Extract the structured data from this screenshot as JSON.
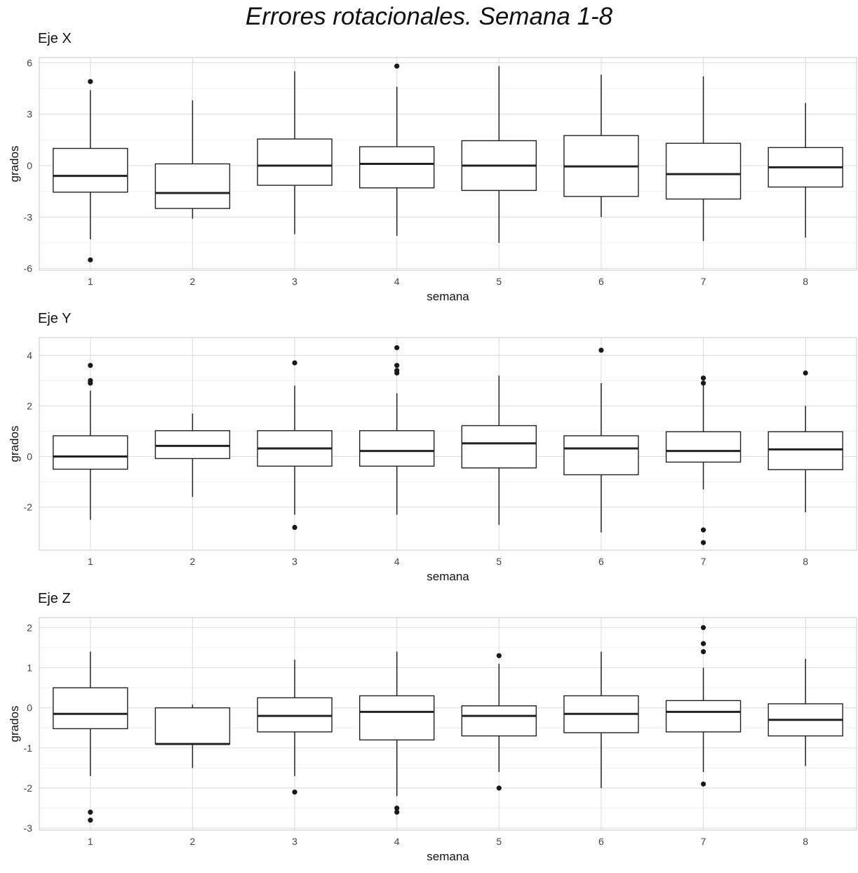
{
  "title": "Errores rotacionales. Semana 1-8",
  "chart_data": [
    {
      "type": "boxplot",
      "title": "Eje X",
      "xlabel": "semana",
      "ylabel": "grados",
      "categories": [
        "1",
        "2",
        "3",
        "4",
        "5",
        "6",
        "7",
        "8"
      ],
      "ylim": [
        -6.1,
        6.3
      ],
      "yticks": [
        -6,
        -3,
        0,
        3,
        6
      ],
      "grid": true,
      "boxes": [
        {
          "whisker_low": -4.3,
          "q1": -1.55,
          "median": -0.6,
          "q3": 1.0,
          "whisker_high": 4.4,
          "outliers": [
            4.9,
            -5.5
          ]
        },
        {
          "whisker_low": -3.1,
          "q1": -2.5,
          "median": -1.6,
          "q3": 0.1,
          "whisker_high": 3.8,
          "outliers": []
        },
        {
          "whisker_low": -4.0,
          "q1": -1.15,
          "median": 0.0,
          "q3": 1.55,
          "whisker_high": 5.5,
          "outliers": []
        },
        {
          "whisker_low": -4.1,
          "q1": -1.3,
          "median": 0.1,
          "q3": 1.1,
          "whisker_high": 4.6,
          "outliers": [
            5.8
          ]
        },
        {
          "whisker_low": -4.5,
          "q1": -1.45,
          "median": 0.0,
          "q3": 1.45,
          "whisker_high": 5.8,
          "outliers": []
        },
        {
          "whisker_low": -3.0,
          "q1": -1.8,
          "median": -0.05,
          "q3": 1.75,
          "whisker_high": 5.3,
          "outliers": []
        },
        {
          "whisker_low": -4.4,
          "q1": -1.95,
          "median": -0.5,
          "q3": 1.3,
          "whisker_high": 5.2,
          "outliers": []
        },
        {
          "whisker_low": -4.2,
          "q1": -1.25,
          "median": -0.1,
          "q3": 1.05,
          "whisker_high": 3.65,
          "outliers": []
        }
      ]
    },
    {
      "type": "boxplot",
      "title": "Eje Y",
      "xlabel": "semana",
      "ylabel": "grados",
      "categories": [
        "1",
        "2",
        "3",
        "4",
        "5",
        "6",
        "7",
        "8"
      ],
      "ylim": [
        -3.7,
        4.7
      ],
      "yticks": [
        -2,
        0,
        2,
        4
      ],
      "grid": true,
      "boxes": [
        {
          "whisker_low": -2.5,
          "q1": -0.5,
          "median": 0.0,
          "q3": 0.82,
          "whisker_high": 2.6,
          "outliers": [
            3.6,
            3.0,
            2.9
          ]
        },
        {
          "whisker_low": -1.6,
          "q1": -0.08,
          "median": 0.42,
          "q3": 1.02,
          "whisker_high": 1.7,
          "outliers": []
        },
        {
          "whisker_low": -2.3,
          "q1": -0.38,
          "median": 0.32,
          "q3": 1.02,
          "whisker_high": 2.8,
          "outliers": [
            3.7,
            -2.8
          ]
        },
        {
          "whisker_low": -2.3,
          "q1": -0.38,
          "median": 0.22,
          "q3": 1.02,
          "whisker_high": 2.5,
          "outliers": [
            4.3,
            3.6,
            3.4,
            3.3
          ]
        },
        {
          "whisker_low": -2.7,
          "q1": -0.45,
          "median": 0.52,
          "q3": 1.22,
          "whisker_high": 3.2,
          "outliers": []
        },
        {
          "whisker_low": -3.0,
          "q1": -0.72,
          "median": 0.32,
          "q3": 0.82,
          "whisker_high": 2.9,
          "outliers": [
            4.2
          ]
        },
        {
          "whisker_low": -1.3,
          "q1": -0.22,
          "median": 0.22,
          "q3": 0.98,
          "whisker_high": 2.9,
          "outliers": [
            3.1,
            2.9,
            -2.9,
            -3.4
          ]
        },
        {
          "whisker_low": -2.2,
          "q1": -0.52,
          "median": 0.28,
          "q3": 0.98,
          "whisker_high": 2.0,
          "outliers": [
            3.3
          ]
        }
      ]
    },
    {
      "type": "boxplot",
      "title": "Eje Z",
      "xlabel": "semana",
      "ylabel": "grados",
      "categories": [
        "1",
        "2",
        "3",
        "4",
        "5",
        "6",
        "7",
        "8"
      ],
      "ylim": [
        -3.05,
        2.25
      ],
      "yticks": [
        -3,
        -2,
        -1,
        0,
        1,
        2
      ],
      "grid": true,
      "boxes": [
        {
          "whisker_low": -1.7,
          "q1": -0.52,
          "median": -0.15,
          "q3": 0.5,
          "whisker_high": 1.4,
          "outliers": [
            -2.6,
            -2.8
          ]
        },
        {
          "whisker_low": -1.5,
          "q1": -0.9,
          "median": -0.9,
          "q3": 0.0,
          "whisker_high": 0.08,
          "outliers": []
        },
        {
          "whisker_low": -1.7,
          "q1": -0.6,
          "median": -0.2,
          "q3": 0.25,
          "whisker_high": 1.2,
          "outliers": [
            -2.1
          ]
        },
        {
          "whisker_low": -2.2,
          "q1": -0.8,
          "median": -0.1,
          "q3": 0.3,
          "whisker_high": 1.4,
          "outliers": [
            -2.5,
            -2.6
          ]
        },
        {
          "whisker_low": -1.6,
          "q1": -0.7,
          "median": -0.2,
          "q3": 0.05,
          "whisker_high": 1.1,
          "outliers": [
            1.3,
            -2.0
          ]
        },
        {
          "whisker_low": -2.0,
          "q1": -0.62,
          "median": -0.15,
          "q3": 0.3,
          "whisker_high": 1.4,
          "outliers": []
        },
        {
          "whisker_low": -1.6,
          "q1": -0.6,
          "median": -0.1,
          "q3": 0.18,
          "whisker_high": 1.0,
          "outliers": [
            2.0,
            1.6,
            1.4,
            -1.9
          ]
        },
        {
          "whisker_low": -1.45,
          "q1": -0.7,
          "median": -0.3,
          "q3": 0.1,
          "whisker_high": 1.22,
          "outliers": []
        }
      ]
    }
  ]
}
